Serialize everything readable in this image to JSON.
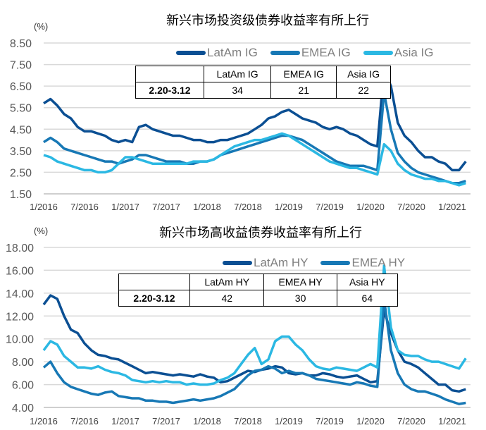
{
  "chart_data": [
    {
      "type": "line",
      "title": "新兴市场投资级债券收益率有所上行",
      "unit": "(%)",
      "ylim": [
        1.5,
        8.5
      ],
      "yticks": [
        "1.50",
        "2.50",
        "3.50",
        "4.50",
        "5.50",
        "6.50",
        "7.50",
        "8.50"
      ],
      "xticks": [
        "1/2016",
        "7/2016",
        "1/2017",
        "7/2017",
        "1/2018",
        "7/2018",
        "1/2019",
        "7/2019",
        "1/2020",
        "7/2020",
        "1/2021"
      ],
      "grid": "horizontal",
      "legend": "top-right",
      "x_start": "2016-01",
      "x_step": "monthly",
      "series": [
        {
          "name": "LatAm IG",
          "color": "#0b4f93",
          "values": [
            5.7,
            5.9,
            5.6,
            5.2,
            5.0,
            4.6,
            4.4,
            4.4,
            4.3,
            4.2,
            4.0,
            3.9,
            4.0,
            3.9,
            4.6,
            4.7,
            4.5,
            4.4,
            4.3,
            4.2,
            4.2,
            4.1,
            4.0,
            4.0,
            3.9,
            3.9,
            4.0,
            4.0,
            4.1,
            4.2,
            4.3,
            4.5,
            4.7,
            5.0,
            5.1,
            5.3,
            5.4,
            5.2,
            5.0,
            4.9,
            4.8,
            4.6,
            4.5,
            4.6,
            4.5,
            4.3,
            4.2,
            4.0,
            3.8,
            3.7,
            7.3,
            6.5,
            4.8,
            4.2,
            3.9,
            3.5,
            3.2,
            3.2,
            3.0,
            2.9,
            2.6,
            2.6,
            3.0
          ]
        },
        {
          "name": "EMEA IG",
          "color": "#1778b5",
          "values": [
            3.9,
            4.1,
            3.9,
            3.6,
            3.5,
            3.4,
            3.3,
            3.2,
            3.1,
            3.0,
            3.0,
            2.9,
            3.0,
            3.1,
            3.3,
            3.3,
            3.2,
            3.1,
            3.0,
            3.0,
            3.0,
            2.9,
            2.9,
            3.0,
            3.0,
            3.1,
            3.3,
            3.4,
            3.5,
            3.6,
            3.7,
            3.8,
            3.9,
            4.0,
            4.1,
            4.2,
            4.2,
            4.1,
            4.0,
            3.8,
            3.6,
            3.4,
            3.2,
            3.0,
            2.9,
            2.8,
            2.8,
            2.8,
            2.7,
            2.6,
            6.2,
            4.5,
            3.4,
            3.0,
            2.7,
            2.5,
            2.4,
            2.3,
            2.2,
            2.1,
            2.0,
            2.0,
            2.1
          ]
        },
        {
          "name": "Asia IG",
          "color": "#2bb8e3",
          "values": [
            3.3,
            3.2,
            3.0,
            2.9,
            2.8,
            2.7,
            2.6,
            2.6,
            2.5,
            2.5,
            2.6,
            2.9,
            3.2,
            3.2,
            3.1,
            3.0,
            2.9,
            2.9,
            2.9,
            2.9,
            2.9,
            2.9,
            3.0,
            3.0,
            3.0,
            3.1,
            3.3,
            3.5,
            3.7,
            3.8,
            3.9,
            4.0,
            4.0,
            4.1,
            4.2,
            4.3,
            4.2,
            4.0,
            3.8,
            3.6,
            3.4,
            3.2,
            3.0,
            2.9,
            2.8,
            2.7,
            2.7,
            2.6,
            2.5,
            2.4,
            3.8,
            3.5,
            2.9,
            2.6,
            2.4,
            2.3,
            2.2,
            2.2,
            2.1,
            2.1,
            2.0,
            1.9,
            2.0
          ]
        }
      ],
      "table": {
        "headers": [
          "",
          "LatAm IG",
          "EMEA IG",
          "Asia IG"
        ],
        "row_label": "2.20-3.12",
        "values": [
          "34",
          "21",
          "22"
        ]
      }
    },
    {
      "type": "line",
      "title": "新兴市场高收益债券收益率有所上行",
      "unit": "(%)",
      "ylim": [
        4,
        18
      ],
      "yticks": [
        "4.00",
        "6.00",
        "8.00",
        "10.00",
        "12.00",
        "14.00",
        "16.00",
        "18.00"
      ],
      "xticks": [
        "1/2016",
        "7/2016",
        "1/2017",
        "7/2017",
        "1/2018",
        "7/2018",
        "1/2019",
        "7/2019",
        "1/2020",
        "7/2020",
        "1/2021"
      ],
      "grid": "horizontal",
      "legend": "top-right",
      "x_start": "2016-01",
      "x_step": "monthly",
      "series": [
        {
          "name": "LatAm HY",
          "color": "#0b4f93",
          "values": [
            13.0,
            13.8,
            13.5,
            12.0,
            10.8,
            10.5,
            9.6,
            9.0,
            8.6,
            8.5,
            8.3,
            8.2,
            7.9,
            7.6,
            7.3,
            7.0,
            7.1,
            7.0,
            6.9,
            6.8,
            6.9,
            6.8,
            6.7,
            6.9,
            6.7,
            6.6,
            6.2,
            6.3,
            6.6,
            6.9,
            7.2,
            7.1,
            7.3,
            7.4,
            7.6,
            7.5,
            7.0,
            6.9,
            7.0,
            6.8,
            6.8,
            7.0,
            6.9,
            6.7,
            6.6,
            6.7,
            6.8,
            6.5,
            6.2,
            6.3,
            12.5,
            10.5,
            9.0,
            8.0,
            7.8,
            7.5,
            7.0,
            6.5,
            6.0,
            6.0,
            5.5,
            5.4,
            5.6
          ]
        },
        {
          "name": "EMEA HY",
          "color": "#1778b5",
          "values": [
            7.5,
            8.0,
            7.0,
            6.2,
            5.8,
            5.6,
            5.4,
            5.2,
            5.1,
            5.3,
            5.4,
            5.0,
            4.9,
            4.8,
            4.8,
            4.6,
            4.6,
            4.5,
            4.5,
            4.4,
            4.5,
            4.6,
            4.7,
            4.6,
            4.7,
            4.8,
            5.0,
            5.3,
            5.6,
            6.2,
            6.8,
            7.2,
            7.3,
            7.6,
            7.4,
            7.0,
            7.2,
            7.0,
            7.0,
            6.8,
            6.5,
            6.4,
            6.3,
            6.2,
            6.1,
            6.0,
            6.2,
            6.1,
            5.9,
            5.8,
            13.5,
            9.0,
            7.0,
            6.0,
            5.6,
            5.4,
            5.4,
            5.2,
            5.0,
            4.7,
            4.5,
            4.3,
            4.4
          ]
        },
        {
          "color": "#2bb8e3",
          "values": [
            9.0,
            9.8,
            9.5,
            8.5,
            8.0,
            7.5,
            7.5,
            7.4,
            7.6,
            7.3,
            7.1,
            7.0,
            6.8,
            6.4,
            6.3,
            6.2,
            6.3,
            6.2,
            6.3,
            6.2,
            6.2,
            6.0,
            6.1,
            6.0,
            6.0,
            6.1,
            6.4,
            6.6,
            7.0,
            7.8,
            8.6,
            9.2,
            7.8,
            8.2,
            9.8,
            10.2,
            10.2,
            9.5,
            9.0,
            8.2,
            7.6,
            7.4,
            7.3,
            7.5,
            7.4,
            7.3,
            7.2,
            7.5,
            7.8,
            7.5,
            16.4,
            11.0,
            9.0,
            8.6,
            8.5,
            8.5,
            8.2,
            8.0,
            8.0,
            7.8,
            7.6,
            7.4,
            8.3
          ]
        }
      ],
      "table": {
        "headers": [
          "",
          "LatAm HY",
          "EMEA HY",
          "Asia HY"
        ],
        "row_label": "2.20-3.12",
        "values": [
          "42",
          "30",
          "64"
        ]
      }
    }
  ]
}
